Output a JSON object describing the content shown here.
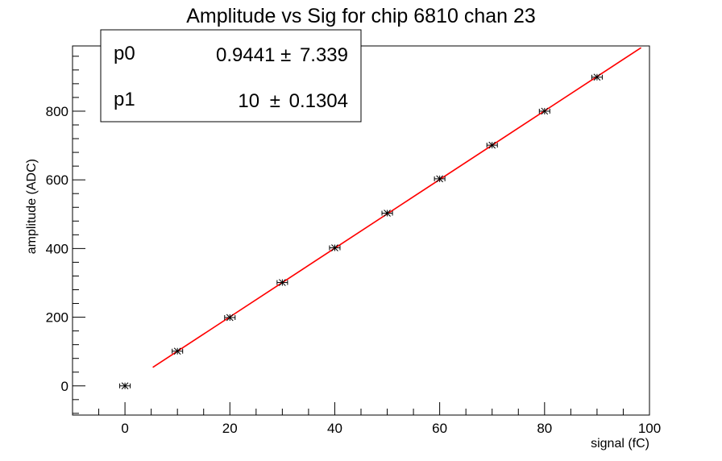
{
  "chart_data": {
    "type": "scatter",
    "title": "Amplitude vs Sig for chip 6810 chan 23",
    "xlabel": "signal (fC)",
    "ylabel": "amplitude (ADC)",
    "xlim": [
      -10,
      100
    ],
    "ylim": [
      -85,
      990
    ],
    "grid": false,
    "x_ticks": [
      0,
      20,
      40,
      60,
      80,
      100
    ],
    "y_ticks": [
      0,
      200,
      400,
      600,
      800
    ],
    "points": [
      {
        "x": 0,
        "y": 0
      },
      {
        "x": 10,
        "y": 101
      },
      {
        "x": 20,
        "y": 199
      },
      {
        "x": 30,
        "y": 301
      },
      {
        "x": 40,
        "y": 402
      },
      {
        "x": 50,
        "y": 503
      },
      {
        "x": 60,
        "y": 603
      },
      {
        "x": 70,
        "y": 701
      },
      {
        "x": 80,
        "y": 800
      },
      {
        "x": 90,
        "y": 899
      }
    ],
    "x_error": 1,
    "fit": {
      "x_range": [
        5.3,
        98.4
      ],
      "p0": 0.9441,
      "p1": 10,
      "color": "#ff0000"
    },
    "stats": [
      {
        "name": "p0",
        "value": "0.9441",
        "error": "7.339"
      },
      {
        "name": "p1",
        "value": "10",
        "error": "0.1304"
      }
    ],
    "pm_symbol": "±",
    "marker_color": "#000000"
  }
}
